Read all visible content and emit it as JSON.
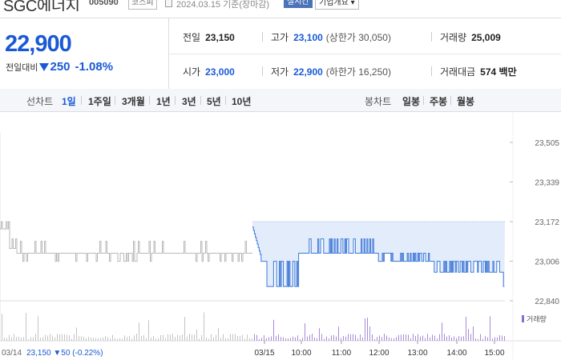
{
  "header": {
    "company_name": "SGC에너지",
    "code": "005090",
    "market": "코스피",
    "as_of": "2024.03.15 기준(장마감)",
    "realtime_badge": "실시간",
    "corp_info": "기업개요"
  },
  "quote": {
    "price": "22,900",
    "change_label": "전일대비",
    "change": "250",
    "change_pct": "-1.08%",
    "direction": "down",
    "down_color": "#1a59d6",
    "prev_close_label": "전일",
    "prev_close": "23,150",
    "high_label": "고가",
    "high": "23,100",
    "upper_limit": "(상한가 30,050)",
    "volume_label": "거래량",
    "volume": "25,009",
    "open_label": "시가",
    "open": "23,000",
    "low_label": "저가",
    "low": "22,900",
    "lower_limit": "(하한가 16,250)",
    "value_label": "거래대금",
    "value": "574",
    "value_unit": "백만"
  },
  "chart_tabs": {
    "line_label": "선차트",
    "line_periods": [
      "1일",
      "1주일",
      "3개월",
      "1년",
      "3년",
      "5년",
      "10년"
    ],
    "active_period": "1일",
    "candle_label": "봉차트",
    "candle_periods": [
      "일봉",
      "주봉",
      "월봉"
    ]
  },
  "chart_data": {
    "type": "line",
    "price_axis_ticks": [
      "23,505",
      "23,339",
      "23,172",
      "23,006",
      "22,840"
    ],
    "ylim": [
      22840,
      23505
    ],
    "reference_value": 23172,
    "x_ticks": [
      "03/15",
      "10:00",
      "11:00",
      "12:00",
      "13:00",
      "14:00",
      "15:00"
    ],
    "prev_day_label": "03/14",
    "prev_day_close": "23,150",
    "prev_day_change": "50",
    "prev_day_change_pct": "(-0.22%)",
    "volume_legend": "거래량",
    "series": [
      {
        "name": "03/14",
        "color": "#b8b8b8"
      },
      {
        "name": "03/15",
        "color": "#3d78d8"
      }
    ]
  }
}
